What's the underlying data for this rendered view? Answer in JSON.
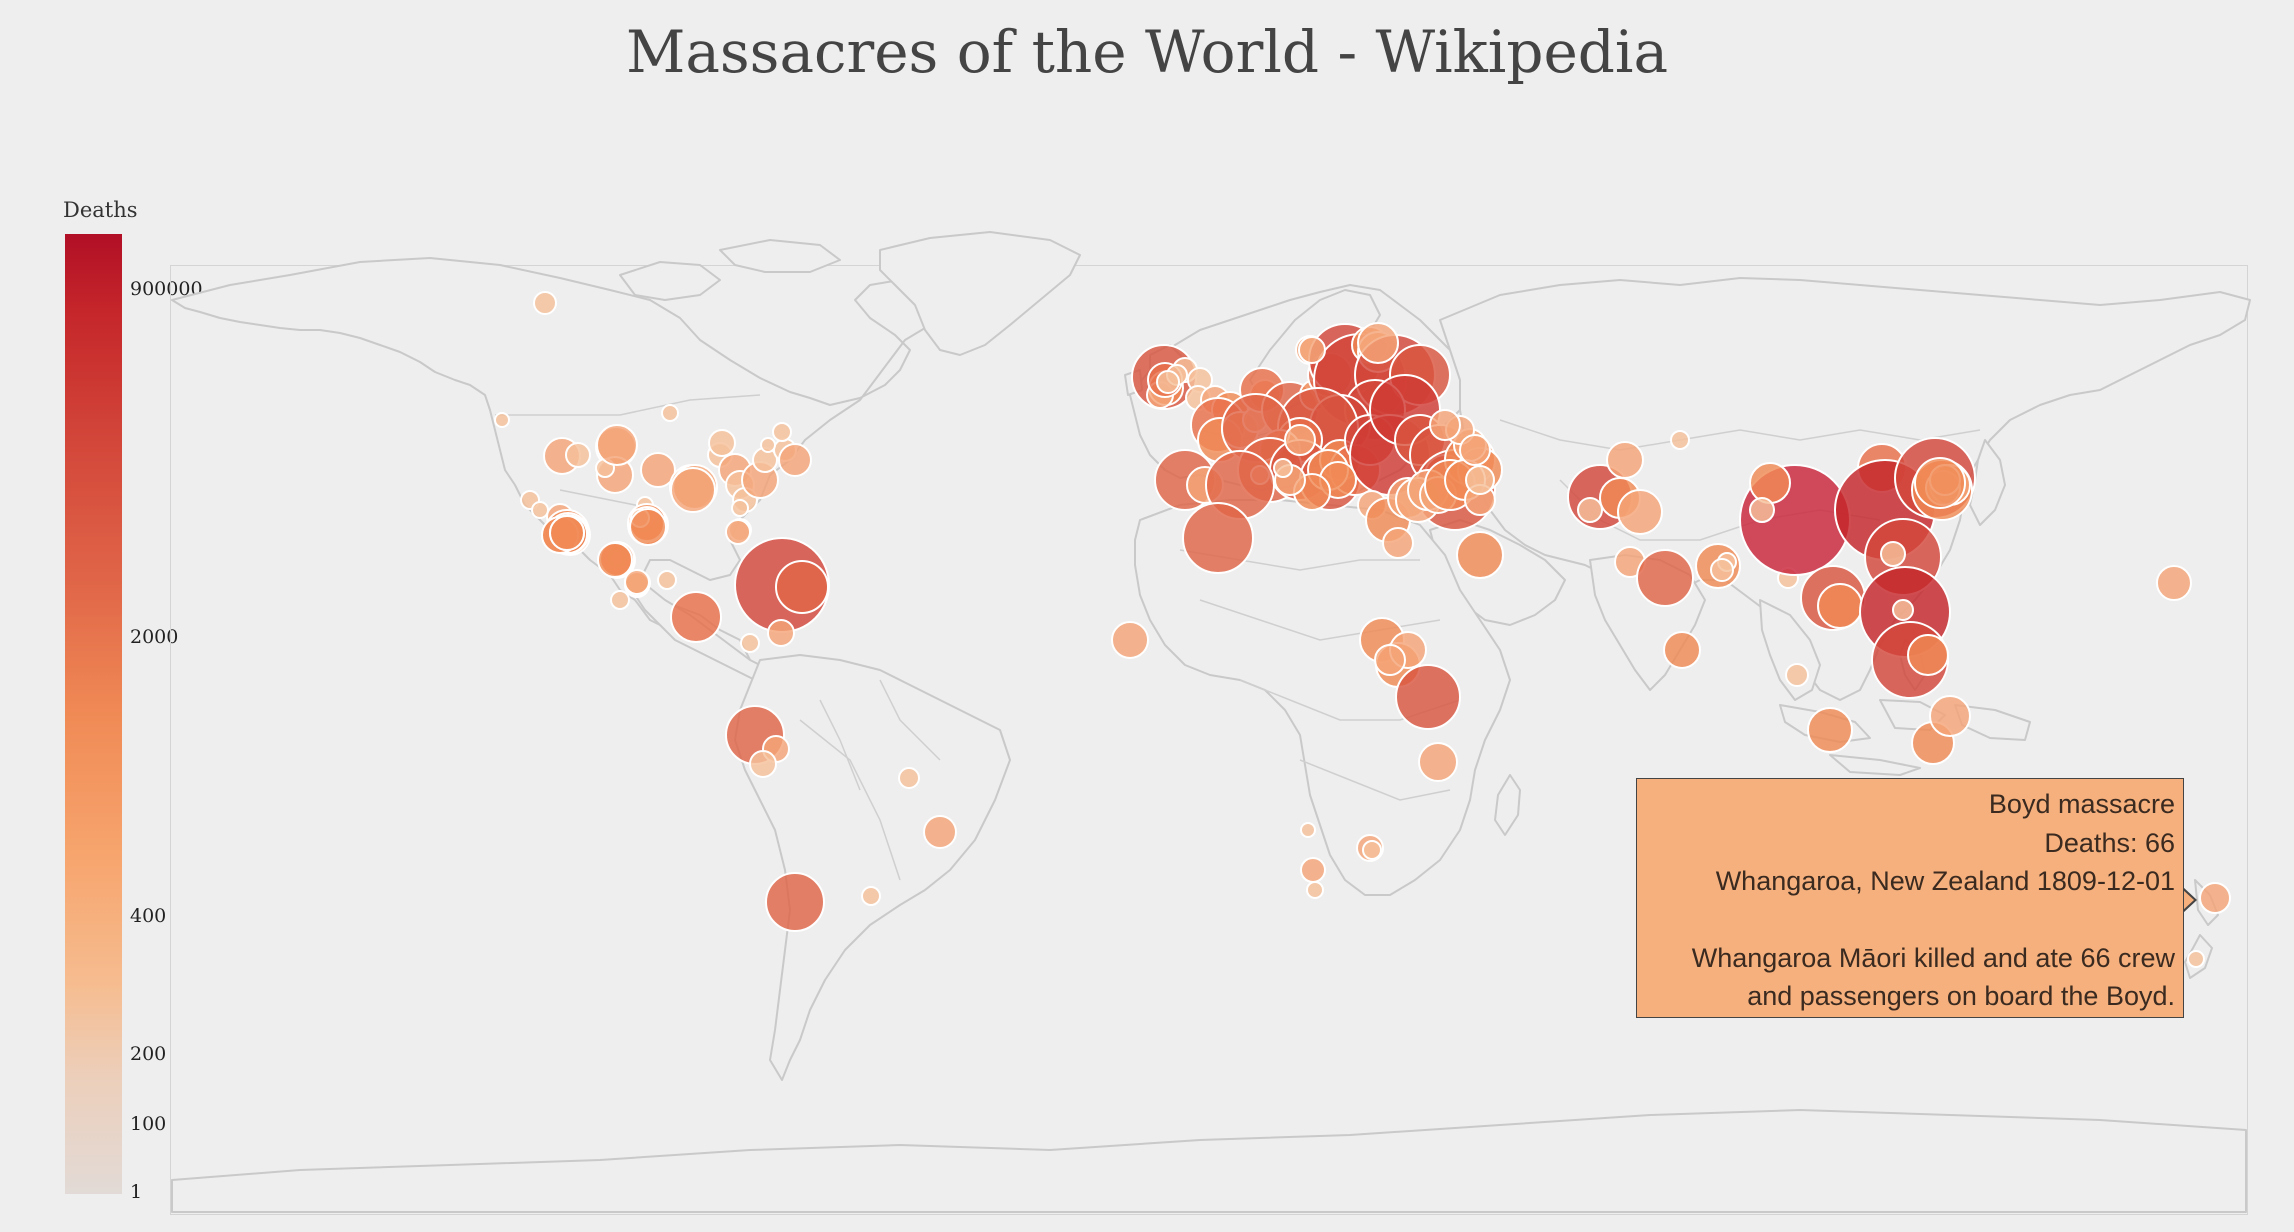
{
  "title": "Massacres of the World - Wikipedia",
  "legend": {
    "title": "Deaths",
    "ticks": [
      {
        "label": "900000",
        "value": 900000
      },
      {
        "label": "2000",
        "value": 2000
      },
      {
        "label": "400",
        "value": 400
      },
      {
        "label": "200",
        "value": 200
      },
      {
        "label": "100",
        "value": 100
      },
      {
        "label": "1",
        "value": 1
      }
    ],
    "colors": {
      "max": "#b10f26",
      "high": "#d3473a",
      "mid": "#f08a55",
      "low": "#f6bc8f",
      "min": "#e2dad6"
    }
  },
  "tooltip": {
    "name": "Boyd massacre",
    "deaths_line": "Deaths: 66",
    "place_date": "Whangaroa, New Zealand 1809-12-01",
    "description_1": "Whangaroa Māori killed and ate 66 crew",
    "description_2": "and passengers on board the Boyd."
  }
}
